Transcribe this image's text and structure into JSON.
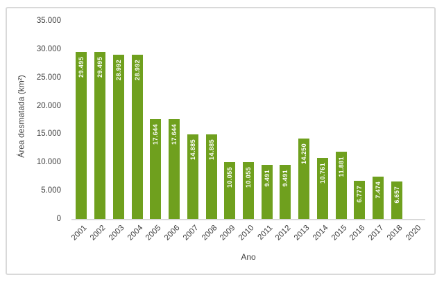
{
  "chart_data": {
    "type": "bar",
    "title": "",
    "xlabel": "Ano",
    "ylabel": "Área desmatada (km²)",
    "categories": [
      "2001",
      "2002",
      "2003",
      "2004",
      "2005",
      "2006",
      "2007",
      "2008",
      "2009",
      "2010",
      "2011",
      "2012",
      "2013",
      "2014",
      "2015",
      "2016",
      "2017",
      "2018",
      "2020"
    ],
    "values": [
      29495,
      29495,
      28992,
      28992,
      17644,
      17644,
      14885,
      14885,
      10055,
      10055,
      9491,
      9491,
      14250,
      10761,
      11881,
      6777,
      7474,
      6657,
      null
    ],
    "value_labels": [
      "29.495",
      "29.495",
      "28.992",
      "28.992",
      "17.644",
      "17.644",
      "14.885",
      "14.885",
      "10.055",
      "10.055",
      "9.491",
      "9.491",
      "14.250",
      "10.761",
      "11.881",
      "6.777",
      "7.474",
      "6.657",
      null
    ],
    "ylim": [
      0,
      35000
    ],
    "y_tick_values": [
      0,
      5000,
      10000,
      15000,
      20000,
      25000,
      30000,
      35000
    ],
    "y_tick_labels": [
      "0",
      "5.000",
      "10.000",
      "15.000",
      "20.000",
      "25.000",
      "30.000",
      "35.000"
    ],
    "grid": false,
    "legend": false,
    "bar_color": "#6fa01e",
    "bar_label_color": "#ffffff",
    "axis_text_color": "#404040",
    "frame_border_color": "#d9d9d9"
  }
}
